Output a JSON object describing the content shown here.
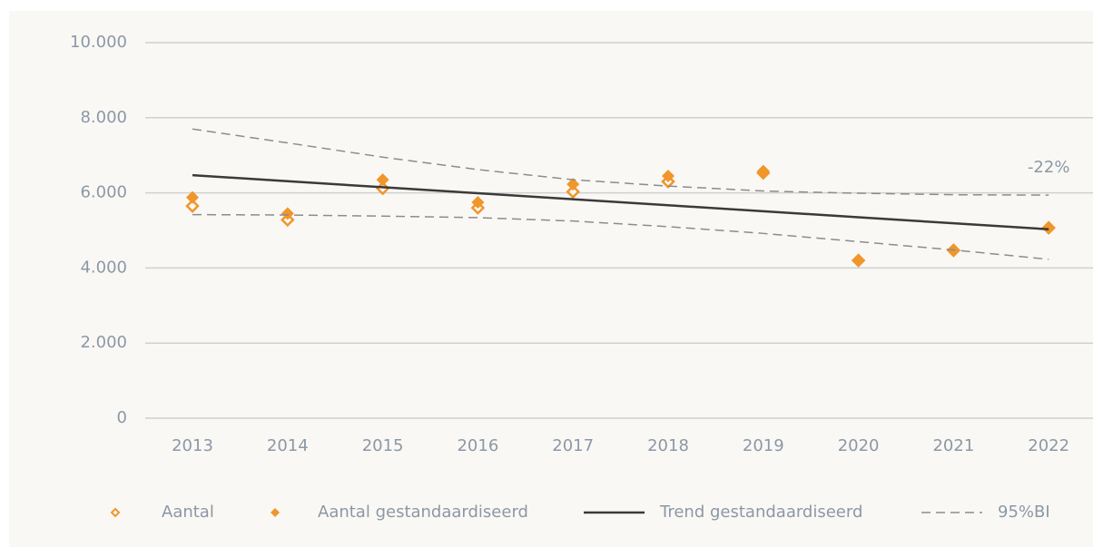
{
  "chart_data": {
    "type": "line",
    "categories": [
      "2013",
      "2014",
      "2015",
      "2016",
      "2017",
      "2018",
      "2019",
      "2020",
      "2021",
      "2022"
    ],
    "series": [
      {
        "name": "Aantal",
        "color": "#f0962a",
        "marker": "hollow-diamond",
        "values": [
          5650,
          5280,
          6120,
          5600,
          6030,
          6300,
          6530,
          4200,
          4470,
          5070
        ]
      },
      {
        "name": "Aantal gestandaardiseerd",
        "color": "#f0962a",
        "marker": "diamond",
        "values": [
          5880,
          5450,
          6350,
          5750,
          6230,
          6450,
          6580,
          4200,
          4470,
          5070
        ]
      },
      {
        "name": "Trend gestandaardiseerd",
        "color": "#3a3a3a",
        "line": "solid",
        "values": [
          6470,
          6310,
          6150,
          5990,
          5830,
          5670,
          5510,
          5350,
          5190,
          5030
        ]
      },
      {
        "name": "95%BI",
        "color": "#8c8c8c",
        "line": "dashed",
        "values": [
          7700,
          7330,
          6950,
          6620,
          6350,
          6180,
          6050,
          5990,
          5950,
          5940
        ],
        "lower": [
          5420,
          5410,
          5380,
          5340,
          5250,
          5100,
          4920,
          4700,
          4480,
          4230
        ]
      }
    ],
    "annotation": "-22%",
    "ylim": [
      0,
      10000
    ],
    "yticks": [
      0,
      {
        "value": 2000,
        "label": "2.000"
      },
      {
        "value": 4000,
        "label": "4.000"
      },
      {
        "value": 6000,
        "label": "6.000"
      },
      {
        "value": 8000,
        "label": "8.000"
      },
      {
        "value": 10000,
        "label": "10.000"
      }
    ],
    "grid": true,
    "legend": "bottom"
  }
}
